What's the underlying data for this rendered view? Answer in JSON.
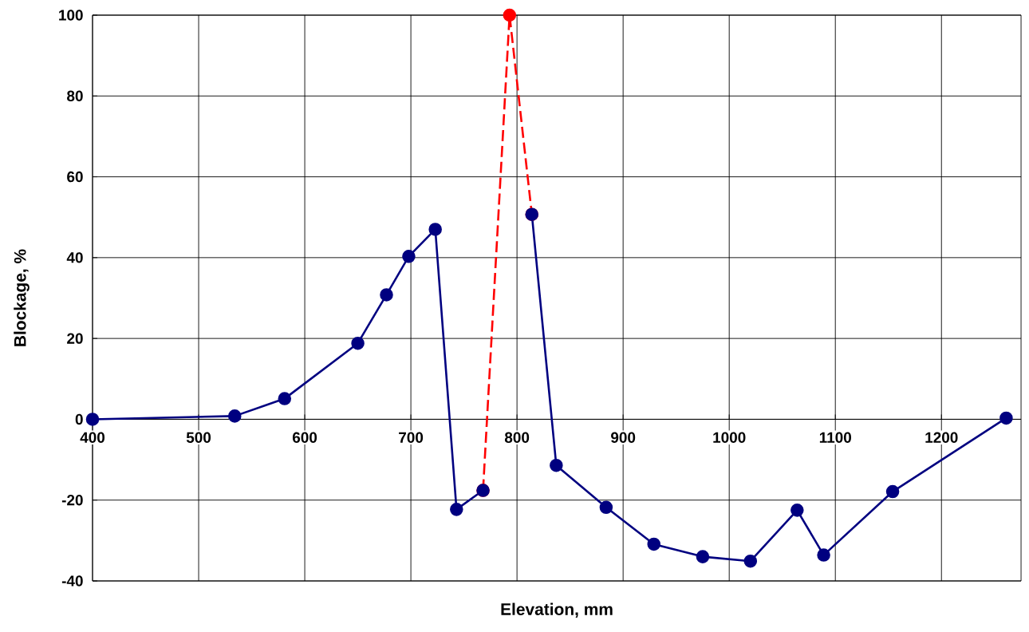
{
  "chart_data": {
    "type": "line",
    "xlabel": "Elevation, mm",
    "ylabel": "Blockage, %",
    "xlim": [
      400,
      1275
    ],
    "xticks": [
      400,
      500,
      600,
      700,
      800,
      900,
      1000,
      1100,
      1200
    ],
    "ylim": [
      -40,
      100
    ],
    "yticks": [
      -40,
      -20,
      0,
      20,
      40,
      60,
      80,
      100
    ],
    "grid": true,
    "marker": "circle",
    "series": [
      {
        "color": "#ff0000",
        "line_style": "dashed",
        "x": [
          768,
          793,
          814
        ],
        "values": [
          -17.6,
          100,
          50.7
        ]
      },
      {
        "color": "#000080",
        "line_style": "solid",
        "x": [
          400,
          534,
          581,
          650,
          677,
          698,
          723,
          743,
          768,
          793,
          814,
          837,
          884,
          929,
          975,
          1020,
          1064,
          1089,
          1154,
          1261
        ],
        "values": [
          0,
          0.8,
          5.1,
          18.8,
          30.8,
          40.3,
          47,
          -22.3,
          -17.6,
          null,
          50.7,
          -11.4,
          -21.8,
          -30.9,
          -34,
          -35.1,
          -22.5,
          -33.6,
          -17.9,
          0.3
        ]
      }
    ]
  }
}
